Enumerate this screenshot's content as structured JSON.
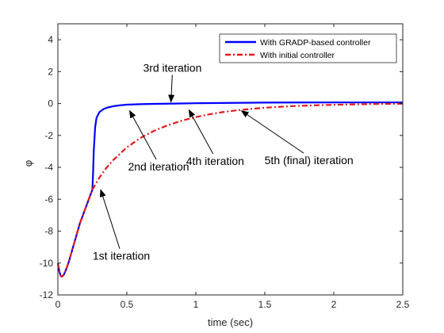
{
  "chart_data": {
    "type": "line",
    "title": "",
    "xlabel": "time (sec)",
    "ylabel": "φ",
    "xlim": [
      0,
      2.5
    ],
    "ylim": [
      -12,
      5
    ],
    "xticks": [
      0,
      0.5,
      1,
      1.5,
      2,
      2.5
    ],
    "xtick_labels": [
      "0",
      "0.5",
      "1",
      "1.5",
      "2",
      "2.5"
    ],
    "yticks": [
      -12,
      -10,
      -8,
      -6,
      -4,
      -2,
      0,
      2,
      4
    ],
    "ytick_labels": [
      "-12",
      "-10",
      "-8",
      "-6",
      "-4",
      "-2",
      "0",
      "2",
      "4"
    ],
    "grid": false,
    "legend_position": "top-right",
    "series": [
      {
        "name": "With GRADP-based controller",
        "color": "#0000ff",
        "style": "solid",
        "x": [
          0,
          0.01,
          0.02,
          0.03,
          0.045,
          0.06,
          0.08,
          0.1,
          0.13,
          0.16,
          0.19,
          0.22,
          0.25,
          0.255,
          0.26,
          0.27,
          0.28,
          0.3,
          0.33,
          0.36,
          0.4,
          0.45,
          0.5,
          0.6,
          0.7,
          0.85,
          1.0,
          1.5,
          2.0,
          2.5
        ],
        "y": [
          -10.0,
          -10.5,
          -10.8,
          -10.85,
          -10.7,
          -10.4,
          -9.9,
          -9.3,
          -8.4,
          -7.5,
          -6.8,
          -6.1,
          -5.4,
          -4.4,
          -3.0,
          -1.5,
          -0.9,
          -0.55,
          -0.35,
          -0.25,
          -0.17,
          -0.11,
          -0.07,
          -0.04,
          -0.02,
          0.0,
          0.02,
          0.06,
          0.07,
          0.07
        ]
      },
      {
        "name": "With initial controller",
        "color": "#e41a1c",
        "style": "dashdot",
        "x": [
          0,
          0.01,
          0.02,
          0.03,
          0.045,
          0.06,
          0.08,
          0.1,
          0.13,
          0.16,
          0.19,
          0.22,
          0.25,
          0.3,
          0.35,
          0.4,
          0.5,
          0.6,
          0.7,
          0.8,
          0.9,
          1.0,
          1.1,
          1.2,
          1.3,
          1.5,
          1.7,
          1.9,
          2.1,
          2.3,
          2.5
        ],
        "y": [
          -10.0,
          -10.5,
          -10.8,
          -10.85,
          -10.7,
          -10.4,
          -9.9,
          -9.3,
          -8.4,
          -7.5,
          -6.8,
          -6.1,
          -5.4,
          -4.65,
          -4.05,
          -3.55,
          -2.75,
          -2.15,
          -1.7,
          -1.35,
          -1.07,
          -0.85,
          -0.67,
          -0.53,
          -0.42,
          -0.26,
          -0.16,
          -0.1,
          -0.06,
          -0.03,
          -0.01
        ]
      }
    ],
    "annotations": [
      {
        "text": "3rd iteration",
        "text_x": 0.83,
        "text_y": 2.0,
        "arrow_to": [
          0.82,
          0.1
        ]
      },
      {
        "text": "2nd iteration",
        "text_x": 0.73,
        "text_y": -4.2,
        "arrow_to": [
          0.52,
          -0.45
        ]
      },
      {
        "text": "4th iteration",
        "text_x": 1.14,
        "text_y": -3.85,
        "arrow_to": [
          0.95,
          -0.4
        ]
      },
      {
        "text": "5th (final) iteration",
        "text_x": 1.82,
        "text_y": -3.8,
        "arrow_to": [
          1.33,
          -0.45
        ]
      },
      {
        "text": "1st iteration",
        "text_x": 0.46,
        "text_y": -9.8,
        "arrow_to": [
          0.31,
          -5.4
        ]
      }
    ]
  }
}
